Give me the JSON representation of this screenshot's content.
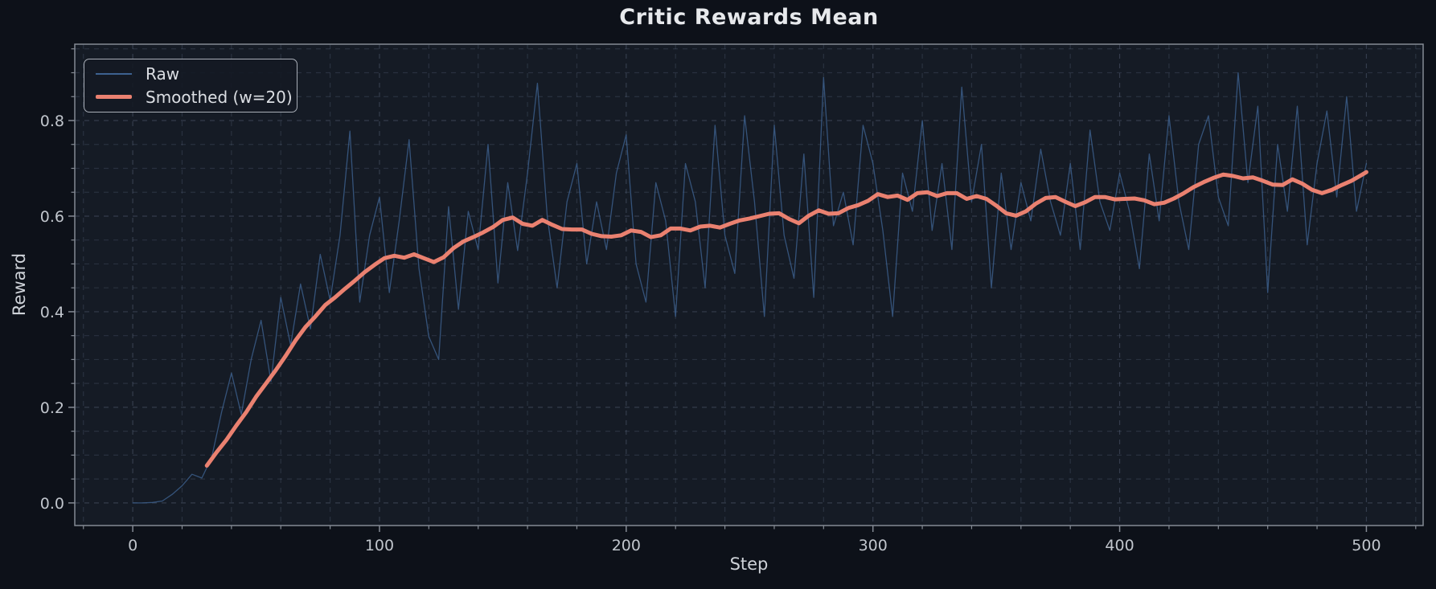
{
  "chart_data": {
    "type": "line",
    "title": "Critic Rewards Mean",
    "xlabel": "Step",
    "ylabel": "Reward",
    "xlim": [
      -23.5,
      523
    ],
    "ylim": [
      -0.0473,
      0.9597
    ],
    "x_ticks_major": [
      0,
      100,
      200,
      300,
      400,
      500
    ],
    "x_tick_labels": [
      "0",
      "100",
      "200",
      "300",
      "400",
      "500"
    ],
    "x_minor_step": 20,
    "y_ticks_major": [
      0.0,
      0.2,
      0.4,
      0.6,
      0.8
    ],
    "y_tick_labels": [
      "0.0",
      "0.2",
      "0.4",
      "0.6",
      "0.8"
    ],
    "y_minor_step": 0.05,
    "grid": true,
    "grid_style": "dashed",
    "legend_position": "upper left",
    "series": [
      {
        "name": "Raw",
        "color": "#3d6190",
        "line_width": 1.3,
        "opacity": 0.8,
        "x": [
          0,
          4,
          8,
          12,
          16,
          20,
          24,
          28,
          32,
          36,
          40,
          44,
          48,
          52,
          56,
          60,
          64,
          68,
          72,
          76,
          80,
          84,
          88,
          92,
          96,
          100,
          104,
          108,
          112,
          116,
          120,
          124,
          128,
          132,
          136,
          140,
          144,
          148,
          152,
          156,
          160,
          164,
          168,
          172,
          176,
          180,
          184,
          188,
          192,
          196,
          200,
          204,
          208,
          212,
          216,
          220,
          224,
          228,
          232,
          236,
          240,
          244,
          248,
          252,
          256,
          260,
          264,
          268,
          272,
          276,
          280,
          284,
          288,
          292,
          296,
          300,
          304,
          308,
          312,
          316,
          320,
          324,
          328,
          332,
          336,
          340,
          344,
          348,
          352,
          356,
          360,
          364,
          368,
          372,
          376,
          380,
          384,
          388,
          392,
          396,
          400,
          404,
          408,
          412,
          416,
          420,
          424,
          428,
          432,
          436,
          440,
          444,
          448,
          452,
          456,
          460,
          464,
          468,
          472,
          476,
          480,
          484,
          488,
          492,
          496,
          500
        ],
        "y": [
          0.0,
          0.0,
          0.001,
          0.004,
          0.018,
          0.036,
          0.06,
          0.052,
          0.095,
          0.19,
          0.272,
          0.185,
          0.3,
          0.382,
          0.254,
          0.43,
          0.33,
          0.458,
          0.364,
          0.52,
          0.424,
          0.56,
          0.778,
          0.42,
          0.56,
          0.64,
          0.44,
          0.59,
          0.76,
          0.49,
          0.348,
          0.3,
          0.62,
          0.405,
          0.61,
          0.53,
          0.75,
          0.46,
          0.67,
          0.528,
          0.69,
          0.878,
          0.6,
          0.45,
          0.63,
          0.71,
          0.5,
          0.63,
          0.53,
          0.69,
          0.77,
          0.5,
          0.42,
          0.67,
          0.59,
          0.39,
          0.71,
          0.63,
          0.45,
          0.79,
          0.56,
          0.48,
          0.81,
          0.63,
          0.39,
          0.79,
          0.56,
          0.47,
          0.73,
          0.43,
          0.89,
          0.58,
          0.65,
          0.54,
          0.79,
          0.71,
          0.57,
          0.39,
          0.69,
          0.61,
          0.8,
          0.57,
          0.71,
          0.53,
          0.87,
          0.63,
          0.75,
          0.45,
          0.69,
          0.53,
          0.67,
          0.59,
          0.74,
          0.63,
          0.56,
          0.71,
          0.53,
          0.78,
          0.63,
          0.57,
          0.69,
          0.61,
          0.49,
          0.73,
          0.59,
          0.81,
          0.63,
          0.53,
          0.75,
          0.81,
          0.64,
          0.58,
          0.9,
          0.67,
          0.83,
          0.44,
          0.75,
          0.61,
          0.83,
          0.54,
          0.71,
          0.82,
          0.64,
          0.85,
          0.61,
          0.71
        ]
      },
      {
        "name": "Smoothed (w=20)",
        "color": "#ea8170",
        "line_width": 5,
        "opacity": 1.0,
        "x": [
          30,
          34,
          38,
          42,
          46,
          50,
          54,
          58,
          62,
          66,
          70,
          74,
          78,
          82,
          86,
          90,
          94,
          98,
          102,
          106,
          110,
          114,
          118,
          122,
          126,
          130,
          134,
          138,
          142,
          146,
          150,
          154,
          158,
          162,
          166,
          170,
          174,
          178,
          182,
          186,
          190,
          194,
          198,
          202,
          206,
          210,
          214,
          218,
          222,
          226,
          230,
          234,
          238,
          242,
          246,
          250,
          254,
          258,
          262,
          266,
          270,
          274,
          278,
          282,
          286,
          290,
          294,
          298,
          302,
          306,
          310,
          314,
          318,
          322,
          326,
          330,
          334,
          338,
          342,
          346,
          350,
          354,
          358,
          362,
          366,
          370,
          374,
          378,
          382,
          386,
          390,
          394,
          398,
          402,
          406,
          410,
          414,
          418,
          422,
          426,
          430,
          434,
          438,
          442,
          446,
          450,
          454,
          458,
          462,
          466,
          470,
          474,
          478,
          482,
          486,
          490,
          494,
          498,
          500
        ],
        "y": [
          0.078,
          0.106,
          0.132,
          0.162,
          0.19,
          0.222,
          0.25,
          0.278,
          0.308,
          0.34,
          0.368,
          0.39,
          0.414,
          0.43,
          0.448,
          0.465,
          0.483,
          0.498,
          0.512,
          0.517,
          0.513,
          0.52,
          0.512,
          0.504,
          0.514,
          0.533,
          0.547,
          0.556,
          0.566,
          0.577,
          0.592,
          0.597,
          0.584,
          0.58,
          0.592,
          0.582,
          0.573,
          0.572,
          0.572,
          0.563,
          0.558,
          0.557,
          0.56,
          0.57,
          0.567,
          0.556,
          0.56,
          0.574,
          0.574,
          0.57,
          0.578,
          0.58,
          0.576,
          0.584,
          0.591,
          0.595,
          0.6,
          0.605,
          0.606,
          0.594,
          0.585,
          0.601,
          0.612,
          0.605,
          0.606,
          0.617,
          0.623,
          0.632,
          0.646,
          0.64,
          0.643,
          0.634,
          0.648,
          0.65,
          0.642,
          0.648,
          0.648,
          0.636,
          0.642,
          0.636,
          0.622,
          0.606,
          0.601,
          0.61,
          0.626,
          0.638,
          0.64,
          0.63,
          0.621,
          0.629,
          0.64,
          0.64,
          0.635,
          0.636,
          0.637,
          0.633,
          0.625,
          0.628,
          0.637,
          0.648,
          0.661,
          0.671,
          0.68,
          0.687,
          0.684,
          0.679,
          0.681,
          0.674,
          0.666,
          0.665,
          0.677,
          0.668,
          0.655,
          0.648,
          0.655,
          0.665,
          0.674,
          0.686,
          0.692
        ]
      }
    ],
    "colors": {
      "figure_bg": "#0d1119",
      "axes_bg": "#151b25",
      "grid": "#5a677d",
      "spine": "#848a94",
      "tick_label": "#c0c5cc",
      "title": "#e7e9ec",
      "axis_label": "#ced2d8",
      "legend_text": "#dcdfe4",
      "legend_border": "#a9aeb7",
      "legend_bg": "#141a24"
    }
  }
}
